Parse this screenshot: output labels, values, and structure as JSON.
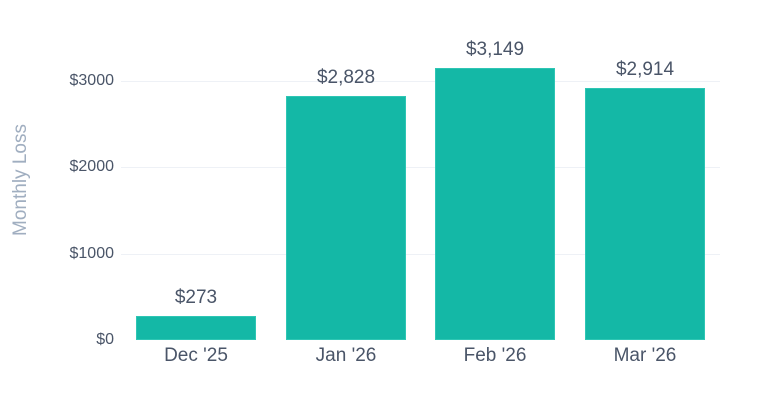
{
  "chart_data": {
    "type": "bar",
    "title": "",
    "xlabel": "",
    "ylabel": "Monthly Loss",
    "categories": [
      "Dec '25",
      "Jan '26",
      "Feb '26",
      "Mar '26"
    ],
    "values": [
      273,
      2828,
      3149,
      2914
    ],
    "value_labels": [
      "$273",
      "$2,828",
      "$3,149",
      "$2,914"
    ],
    "y_ticks": [
      0,
      1000,
      2000,
      3000
    ],
    "y_tick_labels": [
      "$0",
      "$1000",
      "$2000",
      "$3000"
    ],
    "ylim": [
      0,
      3000
    ],
    "grid": true,
    "legend": null,
    "bar_color": "#14b8a6"
  }
}
